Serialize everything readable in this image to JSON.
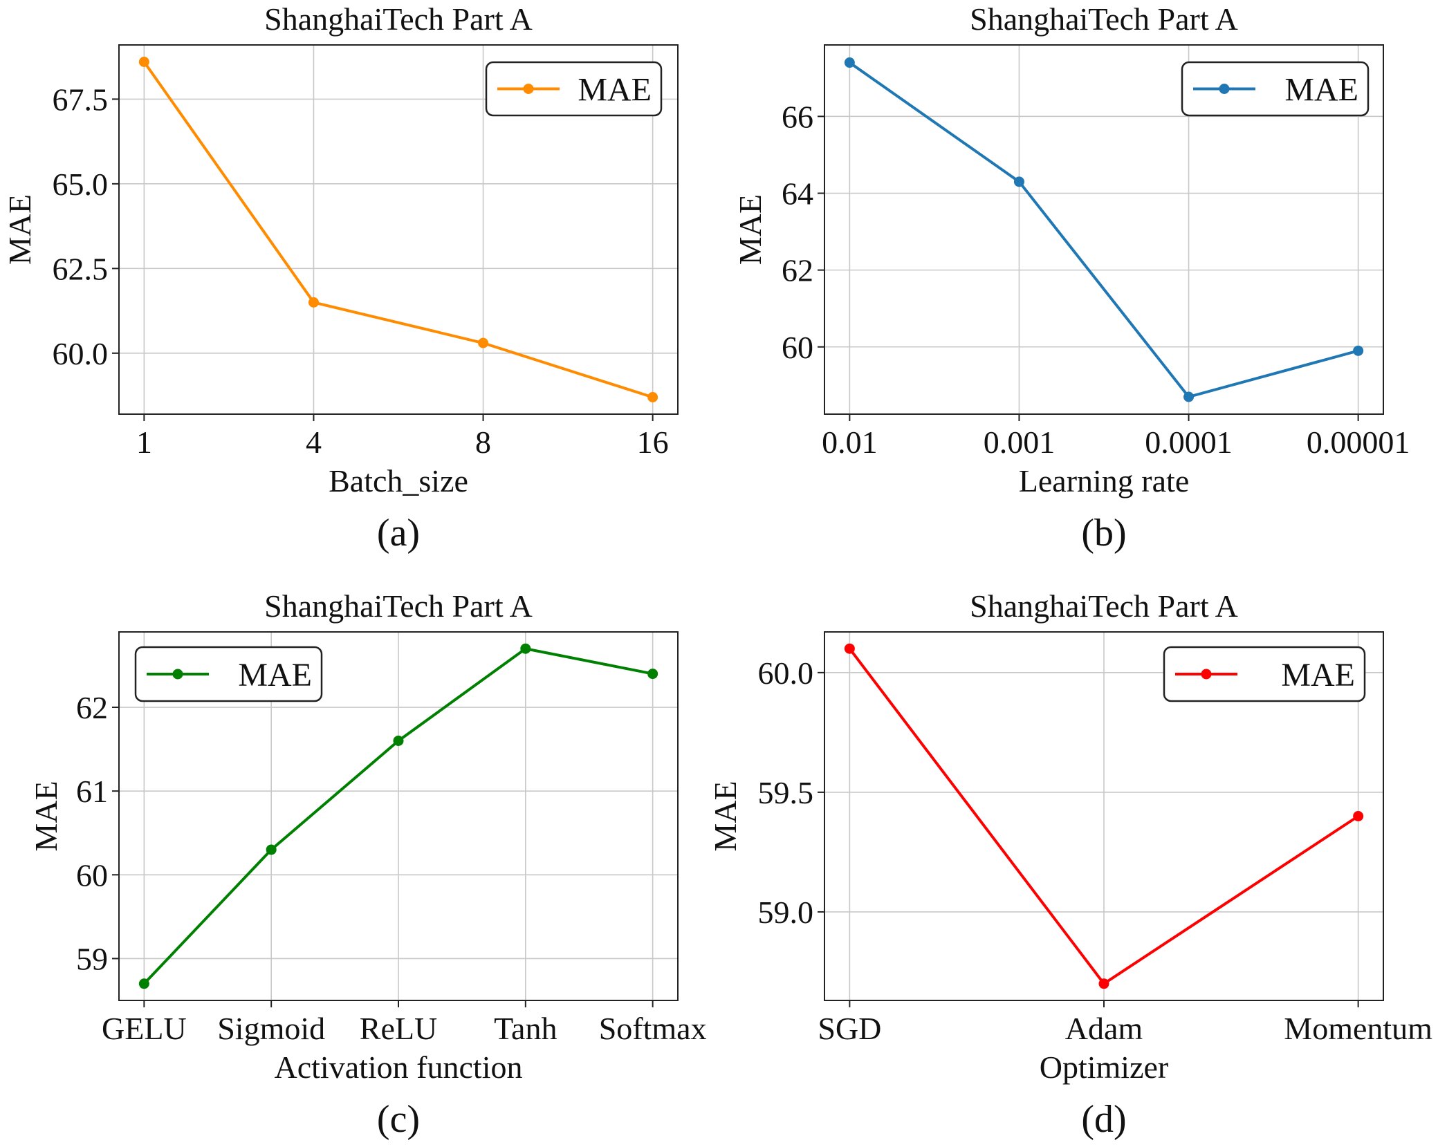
{
  "chart_data": [
    {
      "type": "line",
      "label": "(a)",
      "title": "ShanghaiTech Part A",
      "xlabel": "Batch_size",
      "ylabel": "MAE",
      "categories": [
        "1",
        "4",
        "8",
        "16"
      ],
      "series": [
        {
          "name": "MAE",
          "values": [
            68.6,
            61.5,
            60.3,
            58.7
          ],
          "color": "#ff8c00"
        }
      ],
      "yticks": [
        60.0,
        62.5,
        65.0,
        67.5
      ],
      "ytick_labels": [
        "60.0",
        "62.5",
        "65.0",
        "67.5"
      ],
      "ylim": [
        58.2,
        69.1
      ],
      "grid": true,
      "legend": "top-right"
    },
    {
      "type": "line",
      "label": "(b)",
      "title": "ShanghaiTech Part A",
      "xlabel": "Learning rate",
      "ylabel": "MAE",
      "categories": [
        "0.01",
        "0.001",
        "0.0001",
        "0.00001"
      ],
      "series": [
        {
          "name": "MAE",
          "values": [
            67.4,
            64.3,
            58.7,
            59.9
          ],
          "color": "#1f77b4"
        }
      ],
      "yticks": [
        60,
        62,
        64,
        66
      ],
      "ytick_labels": [
        "60",
        "62",
        "64",
        "66"
      ],
      "ylim": [
        58.25,
        67.86
      ],
      "grid": true,
      "legend": "top-right"
    },
    {
      "type": "line",
      "label": "(c)",
      "title": "ShanghaiTech Part A",
      "xlabel": "Activation function",
      "ylabel": "MAE",
      "categories": [
        "GELU",
        "Sigmoid",
        "ReLU",
        "Tanh",
        "Softmax"
      ],
      "series": [
        {
          "name": "MAE",
          "values": [
            58.7,
            60.3,
            61.6,
            62.7,
            62.4
          ],
          "color": "#008000"
        }
      ],
      "yticks": [
        59,
        60,
        61,
        62
      ],
      "ytick_labels": [
        "59",
        "60",
        "61",
        "62"
      ],
      "ylim": [
        58.5,
        62.9
      ],
      "grid": true,
      "legend": "top-left"
    },
    {
      "type": "line",
      "label": "(d)",
      "title": "ShanghaiTech Part A",
      "xlabel": "Optimizer",
      "ylabel": "MAE",
      "categories": [
        "SGD",
        "Adam",
        "Momentum"
      ],
      "series": [
        {
          "name": "MAE",
          "values": [
            60.1,
            58.7,
            59.4
          ],
          "color": "#ff0000"
        }
      ],
      "yticks": [
        59.0,
        59.5,
        60.0
      ],
      "ytick_labels": [
        "59.0",
        "59.5",
        "60.0"
      ],
      "ylim": [
        58.63,
        60.17
      ],
      "grid": true,
      "legend": "top-right"
    }
  ]
}
